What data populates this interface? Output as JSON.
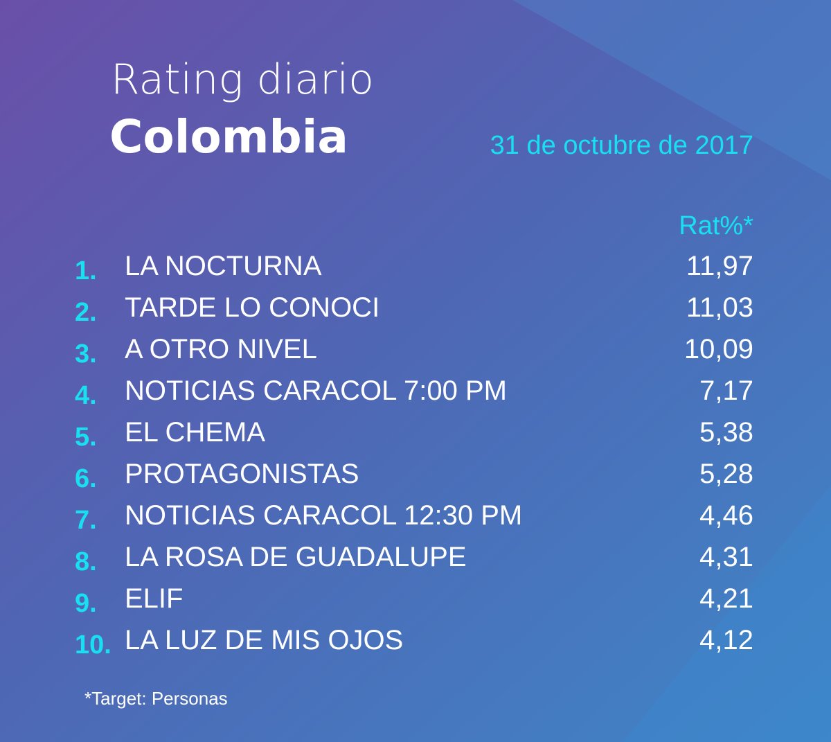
{
  "header": {
    "title": "Rating diario",
    "subtitle": "Colombia",
    "date": "31 de octubre de 2017"
  },
  "table": {
    "column_header": "Rat%*",
    "rows": [
      [
        "1.",
        "LA NOCTURNA",
        "11,97"
      ],
      [
        "2.",
        "TARDE LO CONOCI",
        "11,03"
      ],
      [
        "3.",
        "A OTRO NIVEL",
        "10,09"
      ],
      [
        "4.",
        "NOTICIAS CARACOL 7:00 PM",
        "7,17"
      ],
      [
        "5.",
        "EL CHEMA",
        "5,38"
      ],
      [
        "6.",
        "PROTAGONISTAS",
        "5,28"
      ],
      [
        "7.",
        "NOTICIAS CARACOL 12:30 PM",
        "4,46"
      ],
      [
        "8.",
        "LA ROSA DE GUADALUPE",
        "4,31"
      ],
      [
        "9.",
        "ELIF",
        "4,21"
      ],
      [
        "10.",
        "LA LUZ DE MIS OJOS",
        "4,12"
      ]
    ]
  },
  "footnote": "*Target: Personas"
}
